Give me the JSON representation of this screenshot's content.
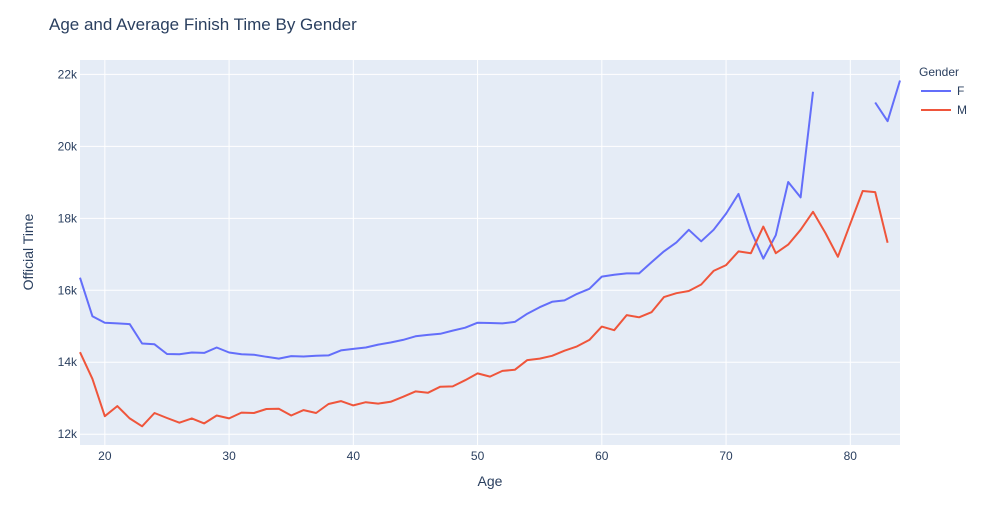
{
  "chart_data": {
    "type": "line",
    "title": "Age and Average Finish Time By Gender",
    "xlabel": "Age",
    "ylabel": "Official Time",
    "xlim": [
      18,
      84
    ],
    "ylim": [
      11700,
      22400
    ],
    "x_ticks": [
      20,
      30,
      40,
      50,
      60,
      70,
      80
    ],
    "x_tick_labels": [
      "20",
      "30",
      "40",
      "50",
      "60",
      "70",
      "80"
    ],
    "y_ticks": [
      12000,
      14000,
      16000,
      18000,
      20000,
      22000
    ],
    "y_tick_labels": [
      "12k",
      "14k",
      "16k",
      "18k",
      "20k",
      "22k"
    ],
    "legend_title": "Gender",
    "legend_position": "right",
    "grid": true,
    "plot_background": "#e5ecf6",
    "series": [
      {
        "name": "F",
        "color": "#636efa",
        "x": [
          18,
          19,
          20,
          21,
          22,
          23,
          24,
          25,
          26,
          27,
          28,
          29,
          30,
          31,
          32,
          33,
          34,
          35,
          36,
          37,
          38,
          39,
          40,
          41,
          42,
          43,
          44,
          45,
          46,
          47,
          48,
          49,
          50,
          51,
          52,
          53,
          54,
          55,
          56,
          57,
          58,
          59,
          60,
          61,
          62,
          63,
          64,
          65,
          66,
          67,
          68,
          69,
          70,
          71,
          72,
          73,
          74,
          75,
          76,
          77,
          78,
          79,
          80,
          81,
          82,
          83,
          84
        ],
        "y": [
          16350,
          15280,
          15100,
          15080,
          15060,
          14520,
          14500,
          14230,
          14220,
          14270,
          14260,
          14410,
          14270,
          14220,
          14210,
          14150,
          14100,
          14170,
          14160,
          14180,
          14190,
          14330,
          14370,
          14410,
          14490,
          14550,
          14620,
          14720,
          14760,
          14790,
          14880,
          14960,
          15100,
          15090,
          15080,
          15120,
          15350,
          15530,
          15680,
          15720,
          15900,
          16040,
          16380,
          16430,
          16470,
          16470,
          16780,
          17080,
          17330,
          17680,
          17360,
          17680,
          18130,
          18680,
          17650,
          16880,
          17530,
          19010,
          18580,
          21520,
          null,
          null,
          null,
          null,
          21220,
          20700,
          21830
        ]
      },
      {
        "name": "M",
        "color": "#ef553b",
        "x": [
          18,
          19,
          20,
          21,
          22,
          23,
          24,
          25,
          26,
          27,
          28,
          29,
          30,
          31,
          32,
          33,
          34,
          35,
          36,
          37,
          38,
          39,
          40,
          41,
          42,
          43,
          44,
          45,
          46,
          47,
          48,
          49,
          50,
          51,
          52,
          53,
          54,
          55,
          56,
          57,
          58,
          59,
          60,
          61,
          62,
          63,
          64,
          65,
          66,
          67,
          68,
          69,
          70,
          71,
          72,
          73,
          74,
          75,
          76,
          77,
          78,
          79,
          80,
          81,
          82,
          83
        ],
        "y": [
          14280,
          13540,
          12500,
          12780,
          12440,
          12220,
          12590,
          12450,
          12320,
          12440,
          12300,
          12520,
          12440,
          12600,
          12590,
          12700,
          12710,
          12520,
          12670,
          12590,
          12840,
          12920,
          12800,
          12890,
          12850,
          12900,
          13040,
          13190,
          13150,
          13320,
          13330,
          13500,
          13690,
          13600,
          13760,
          13790,
          14060,
          14100,
          14180,
          14320,
          14440,
          14620,
          14990,
          14890,
          15310,
          15250,
          15390,
          15810,
          15920,
          15980,
          16160,
          16540,
          16700,
          17080,
          17030,
          17770,
          17030,
          17270,
          17680,
          18180,
          17590,
          16930,
          17850,
          18760,
          18730,
          17320
        ]
      }
    ]
  }
}
